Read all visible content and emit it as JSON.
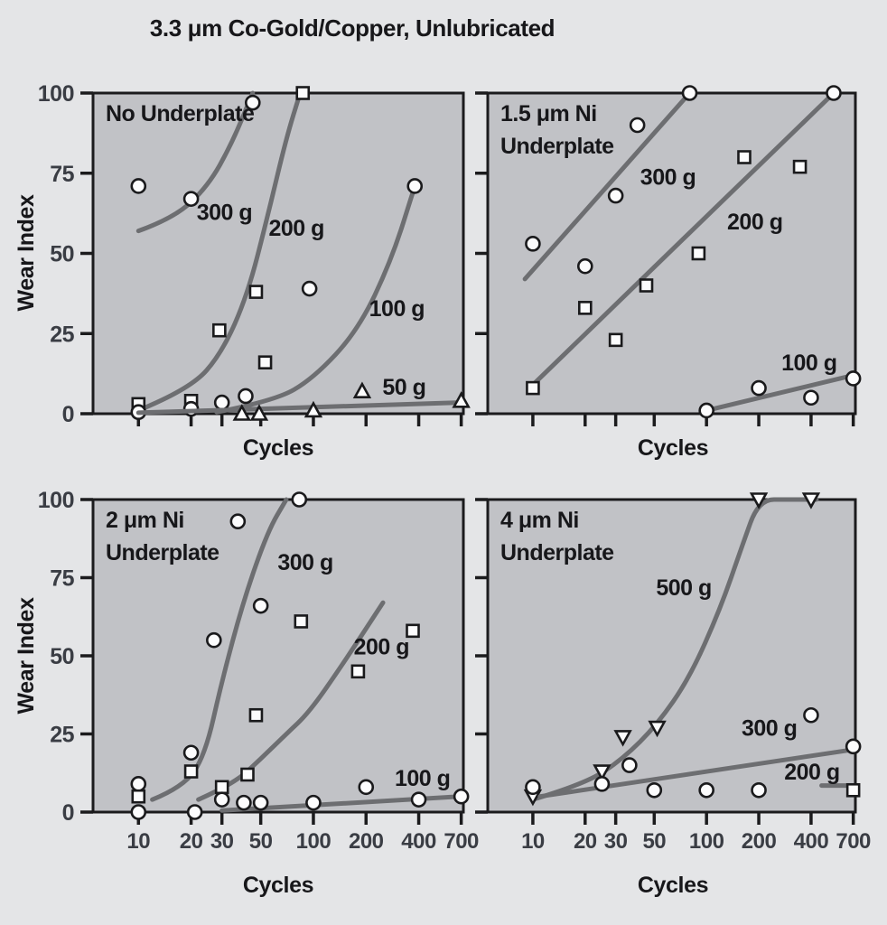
{
  "figure_title": "3.3 μm Co-Gold/Copper, Unlubricated",
  "axis": {
    "xlabel": "Cycles",
    "ylabel": "Wear Index"
  },
  "colors": {
    "background": "#e4e5e7",
    "plot_bg": "#c1c2c6",
    "curve": "#6d6e71",
    "axis": "#1b1b1d",
    "tick_label": "#3a3d44",
    "text": "#17171a",
    "marker_fill": "#fcfcfd",
    "marker_stroke": "#1a1a1c"
  },
  "chart_data": [
    {
      "type": "scatter",
      "title": "No Underplate",
      "title_lines": [
        "No Underplate"
      ],
      "x_scale": "log",
      "xlim": [
        5.5,
        720
      ],
      "ylim": [
        0,
        100
      ],
      "x_ticks": [
        10,
        20,
        30,
        50,
        100,
        200,
        400,
        700
      ],
      "y_ticks": [
        0,
        25,
        50,
        75,
        100
      ],
      "show_x_tick_labels": false,
      "show_y_tick_labels": true,
      "series": [
        {
          "name": "300 g",
          "marker": "circle",
          "points": [
            [
              10,
              71
            ],
            [
              20,
              67
            ],
            [
              45,
              97
            ]
          ],
          "trend": [
            [
              10,
              57
            ],
            [
              16,
              61
            ],
            [
              25,
              71
            ],
            [
              34,
              84
            ],
            [
              45,
              100
            ]
          ],
          "label_at": [
            31,
            63
          ]
        },
        {
          "name": "200 g",
          "marker": "square",
          "points": [
            [
              10,
              3
            ],
            [
              20,
              4
            ],
            [
              29,
              26
            ],
            [
              47,
              38
            ],
            [
              53,
              16
            ],
            [
              87,
              100
            ]
          ],
          "trend": [
            [
              11,
              2
            ],
            [
              20,
              8
            ],
            [
              30,
              19
            ],
            [
              42,
              37
            ],
            [
              55,
              62
            ],
            [
              70,
              86
            ],
            [
              84,
              100
            ]
          ],
          "label_at": [
            80,
            58
          ]
        },
        {
          "name": "100 g",
          "marker": "circle",
          "points": [
            [
              10,
              0.5
            ],
            [
              20,
              1.5
            ],
            [
              30,
              3.5
            ],
            [
              41,
              5.5
            ],
            [
              95,
              39
            ],
            [
              380,
              71
            ]
          ],
          "trend": [
            [
              28,
              0.5
            ],
            [
              60,
              4
            ],
            [
              100,
              11
            ],
            [
              180,
              26
            ],
            [
              280,
              48
            ],
            [
              380,
              71
            ]
          ],
          "label_at": [
            300,
            33
          ]
        },
        {
          "name": "50 g",
          "marker": "triangle-up",
          "points": [
            [
              39,
              0
            ],
            [
              49,
              0
            ],
            [
              100,
              1
            ],
            [
              190,
              7
            ],
            [
              700,
              4
            ]
          ],
          "trend": [
            [
              10,
              0.3
            ],
            [
              700,
              3.5
            ]
          ],
          "label_at": [
            330,
            8.5
          ]
        }
      ]
    },
    {
      "type": "scatter",
      "title": "1.5 μm Ni Underplate",
      "title_lines": [
        "1.5 μm Ni",
        "Underplate"
      ],
      "x_scale": "log",
      "xlim": [
        5.5,
        720
      ],
      "ylim": [
        0,
        100
      ],
      "x_ticks": [
        10,
        20,
        30,
        50,
        100,
        200,
        400,
        700
      ],
      "y_ticks": [
        0,
        25,
        50,
        75,
        100
      ],
      "show_x_tick_labels": false,
      "show_y_tick_labels": false,
      "series": [
        {
          "name": "300 g",
          "marker": "circle",
          "points": [
            [
              10,
              53
            ],
            [
              20,
              46
            ],
            [
              30,
              68
            ],
            [
              40,
              90
            ],
            [
              80,
              100
            ]
          ],
          "trend": [
            [
              9,
              42
            ],
            [
              80,
              100
            ]
          ],
          "label_at": [
            60,
            74
          ]
        },
        {
          "name": "200 g",
          "marker": "square",
          "points": [
            [
              10,
              8
            ],
            [
              20,
              33
            ],
            [
              30,
              23
            ],
            [
              45,
              40
            ],
            [
              90,
              50
            ],
            [
              165,
              80
            ],
            [
              345,
              77
            ]
          ],
          "trend": [
            [
              10,
              9
            ],
            [
              540,
              100
            ]
          ],
          "end_marker": {
            "marker": "circle",
            "point": [
              540,
              100
            ]
          },
          "label_at": [
            190,
            60
          ]
        },
        {
          "name": "100 g",
          "marker": "circle",
          "points": [
            [
              100,
              1
            ],
            [
              200,
              8
            ],
            [
              400,
              5
            ],
            [
              700,
              11
            ]
          ],
          "trend": [
            [
              100,
              1
            ],
            [
              700,
              12
            ]
          ],
          "label_at": [
            390,
            16
          ]
        }
      ]
    },
    {
      "type": "scatter",
      "title": "2 μm Ni Underplate",
      "title_lines": [
        "2 μm Ni",
        "Underplate"
      ],
      "x_scale": "log",
      "xlim": [
        5.5,
        720
      ],
      "ylim": [
        0,
        100
      ],
      "x_ticks": [
        10,
        20,
        30,
        50,
        100,
        200,
        400,
        700
      ],
      "y_ticks": [
        0,
        25,
        50,
        75,
        100
      ],
      "show_x_tick_labels": true,
      "show_y_tick_labels": true,
      "series": [
        {
          "name": "300 g",
          "marker": "circle",
          "points": [
            [
              10,
              9
            ],
            [
              20,
              19
            ],
            [
              27,
              55
            ],
            [
              37,
              93
            ],
            [
              50,
              66
            ],
            [
              83,
              100
            ]
          ],
          "trend": [
            [
              12,
              4
            ],
            [
              18,
              8
            ],
            [
              24,
              18
            ],
            [
              30,
              42
            ],
            [
              40,
              68
            ],
            [
              55,
              90
            ],
            [
              70,
              100
            ]
          ],
          "label_at": [
            90,
            80
          ]
        },
        {
          "name": "200 g",
          "marker": "square",
          "points": [
            [
              10,
              5
            ],
            [
              20,
              13
            ],
            [
              30,
              8
            ],
            [
              42,
              12
            ],
            [
              47,
              31
            ],
            [
              85,
              61
            ],
            [
              180,
              45
            ],
            [
              370,
              58
            ]
          ],
          "trend": [
            [
              22,
              4
            ],
            [
              35,
              9
            ],
            [
              50,
              17
            ],
            [
              70,
              25
            ],
            [
              95,
              32
            ],
            [
              150,
              48
            ],
            [
              250,
              67
            ]
          ],
          "label_at": [
            245,
            53
          ]
        },
        {
          "name": "100 g",
          "marker": "circle",
          "points": [
            [
              10,
              0
            ],
            [
              21,
              0
            ],
            [
              30,
              4
            ],
            [
              40,
              3
            ],
            [
              50,
              3
            ],
            [
              100,
              3
            ],
            [
              200,
              8
            ],
            [
              400,
              4
            ],
            [
              700,
              5
            ]
          ],
          "trend": [
            [
              30,
              0.5
            ],
            [
              700,
              5
            ]
          ],
          "label_at": [
            420,
            11
          ]
        }
      ]
    },
    {
      "type": "scatter",
      "title": "4 μm Ni Underplate",
      "title_lines": [
        "4 μm Ni",
        "Underplate"
      ],
      "x_scale": "log",
      "xlim": [
        5.5,
        720
      ],
      "ylim": [
        0,
        100
      ],
      "x_ticks": [
        10,
        20,
        30,
        50,
        100,
        200,
        400,
        700
      ],
      "y_ticks": [
        0,
        25,
        50,
        75,
        100
      ],
      "show_x_tick_labels": true,
      "show_y_tick_labels": false,
      "series": [
        {
          "name": "500 g",
          "marker": "triangle-down",
          "points": [
            [
              10,
              5
            ],
            [
              25,
              13
            ],
            [
              33,
              24
            ],
            [
              52,
              27
            ],
            [
              200,
              100
            ],
            [
              400,
              100
            ]
          ],
          "trend": [
            [
              10,
              4
            ],
            [
              20,
              9
            ],
            [
              33,
              17
            ],
            [
              52,
              28
            ],
            [
              80,
              43
            ],
            [
              120,
              65
            ],
            [
              160,
              85
            ],
            [
              200,
              100
            ],
            [
              300,
              100
            ],
            [
              430,
              100
            ]
          ],
          "label_at": [
            74,
            72
          ]
        },
        {
          "name": "300 g",
          "marker": "circle",
          "points": [
            [
              10,
              8
            ],
            [
              25,
              9
            ],
            [
              36,
              15
            ],
            [
              50,
              7
            ],
            [
              100,
              7
            ],
            [
              200,
              7
            ],
            [
              400,
              31
            ],
            [
              700,
              21
            ]
          ],
          "trend": [
            [
              11,
              5
            ],
            [
              700,
              20
            ]
          ],
          "label_at": [
            230,
            27
          ]
        },
        {
          "name": "200 g",
          "marker": "square",
          "points": [
            [
              700,
              7
            ]
          ],
          "trend": [
            [
              460,
              8.5
            ],
            [
              700,
              8.5
            ]
          ],
          "label_at": [
            405,
            13
          ]
        }
      ]
    }
  ]
}
